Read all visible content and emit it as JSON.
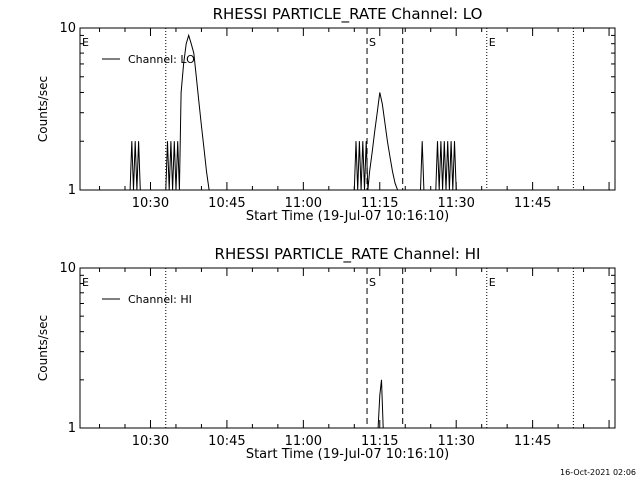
{
  "chart_data": [
    {
      "type": "line",
      "title": "RHESSI PARTICLE_RATE Channel: LO",
      "xlabel": "Start Time (19-Jul-07 10:16:10)",
      "ylabel": "Counts/sec",
      "yscale": "log",
      "ylim": [
        1,
        10
      ],
      "ytick_labels": [
        "1",
        "10"
      ],
      "xlim": [
        "10:16:10",
        "12:01:10"
      ],
      "xtick_labels": [
        "10:30",
        "10:45",
        "11:00",
        "11:15",
        "11:30",
        "11:45"
      ],
      "legend": {
        "placement": "top-left",
        "entries": [
          "Channel: LO"
        ]
      },
      "grid": false,
      "markers": [
        {
          "time": "10:16:10",
          "label": "E",
          "style": "dotted"
        },
        {
          "time": "10:33:00",
          "label": "",
          "style": "dotted"
        },
        {
          "time": "11:12:30",
          "label": "S",
          "style": "dashed"
        },
        {
          "time": "11:19:30",
          "label": "",
          "style": "dashed"
        },
        {
          "time": "11:36:00",
          "label": "E",
          "style": "dotted"
        },
        {
          "time": "11:53:00",
          "label": "",
          "style": "dotted"
        }
      ],
      "series": [
        {
          "name": "Channel: LO",
          "x": [
            "10:26:00",
            "10:26:20",
            "10:26:40",
            "10:27:00",
            "10:27:20",
            "10:27:40",
            "10:28:00",
            "10:28:20",
            "10:33:00",
            "10:33:20",
            "10:33:40",
            "10:34:00",
            "10:34:20",
            "10:34:40",
            "10:35:00",
            "10:35:20",
            "10:35:40",
            "10:36:00",
            "10:36:30",
            "10:37:00",
            "10:37:30",
            "10:38:00",
            "10:38:30",
            "10:39:00",
            "10:39:30",
            "10:40:00",
            "10:40:30",
            "10:41:00",
            "10:41:30",
            "10:42:00",
            "10:42:30",
            "10:43:00",
            "11:10:00",
            "11:10:20",
            "11:10:40",
            "11:11:00",
            "11:11:20",
            "11:11:40",
            "11:12:00",
            "11:12:20",
            "11:12:40",
            "11:13:00",
            "11:13:30",
            "11:14:00",
            "11:14:30",
            "11:15:00",
            "11:15:30",
            "11:16:00",
            "11:16:30",
            "11:17:00",
            "11:17:30",
            "11:18:00",
            "11:18:30",
            "11:23:00",
            "11:23:20",
            "11:23:40",
            "11:24:00",
            "11:26:00",
            "11:26:20",
            "11:26:40",
            "11:27:00",
            "11:27:20",
            "11:27:40",
            "11:28:00",
            "11:28:20",
            "11:28:40",
            "11:29:00",
            "11:29:20",
            "11:29:40",
            "11:30:00",
            "11:30:20"
          ],
          "y": [
            1,
            2,
            1,
            2,
            1,
            2,
            1,
            1,
            1,
            2,
            1,
            2,
            1,
            2,
            1,
            2,
            1,
            4,
            6,
            8,
            9,
            8,
            7,
            5,
            3.5,
            2.5,
            1.8,
            1.3,
            1,
            1,
            1,
            1,
            1,
            2,
            1,
            2,
            1,
            2,
            1,
            2,
            1,
            1.3,
            1.7,
            2.3,
            3,
            4,
            3.4,
            2.6,
            2,
            1.6,
            1.3,
            1.1,
            1,
            1,
            2,
            1,
            1,
            1,
            2,
            1,
            2,
            1,
            2,
            1,
            2,
            1,
            2,
            1,
            2,
            1,
            1
          ]
        }
      ]
    },
    {
      "type": "line",
      "title": "RHESSI PARTICLE_RATE Channel: HI",
      "xlabel": "Start Time (19-Jul-07 10:16:10)",
      "ylabel": "Counts/sec",
      "yscale": "log",
      "ylim": [
        1,
        10
      ],
      "ytick_labels": [
        "1",
        "10"
      ],
      "xlim": [
        "10:16:10",
        "12:01:10"
      ],
      "xtick_labels": [
        "10:30",
        "10:45",
        "11:00",
        "11:15",
        "11:30",
        "11:45"
      ],
      "legend": {
        "placement": "top-left",
        "entries": [
          "Channel: HI"
        ]
      },
      "grid": false,
      "markers": [
        {
          "time": "10:16:10",
          "label": "E",
          "style": "dotted"
        },
        {
          "time": "10:33:00",
          "label": "",
          "style": "dotted"
        },
        {
          "time": "11:12:30",
          "label": "S",
          "style": "dashed"
        },
        {
          "time": "11:19:30",
          "label": "",
          "style": "dashed"
        },
        {
          "time": "11:36:00",
          "label": "E",
          "style": "dotted"
        },
        {
          "time": "11:53:00",
          "label": "",
          "style": "dotted"
        }
      ],
      "series": [
        {
          "name": "Channel: HI",
          "x": [
            "11:14:40",
            "11:15:00",
            "11:15:20",
            "11:15:40",
            "11:16:00"
          ],
          "y": [
            1,
            1.6,
            2,
            1,
            1
          ]
        }
      ]
    }
  ],
  "footer": {
    "timestamp": "16-Oct-2021 02:06"
  }
}
